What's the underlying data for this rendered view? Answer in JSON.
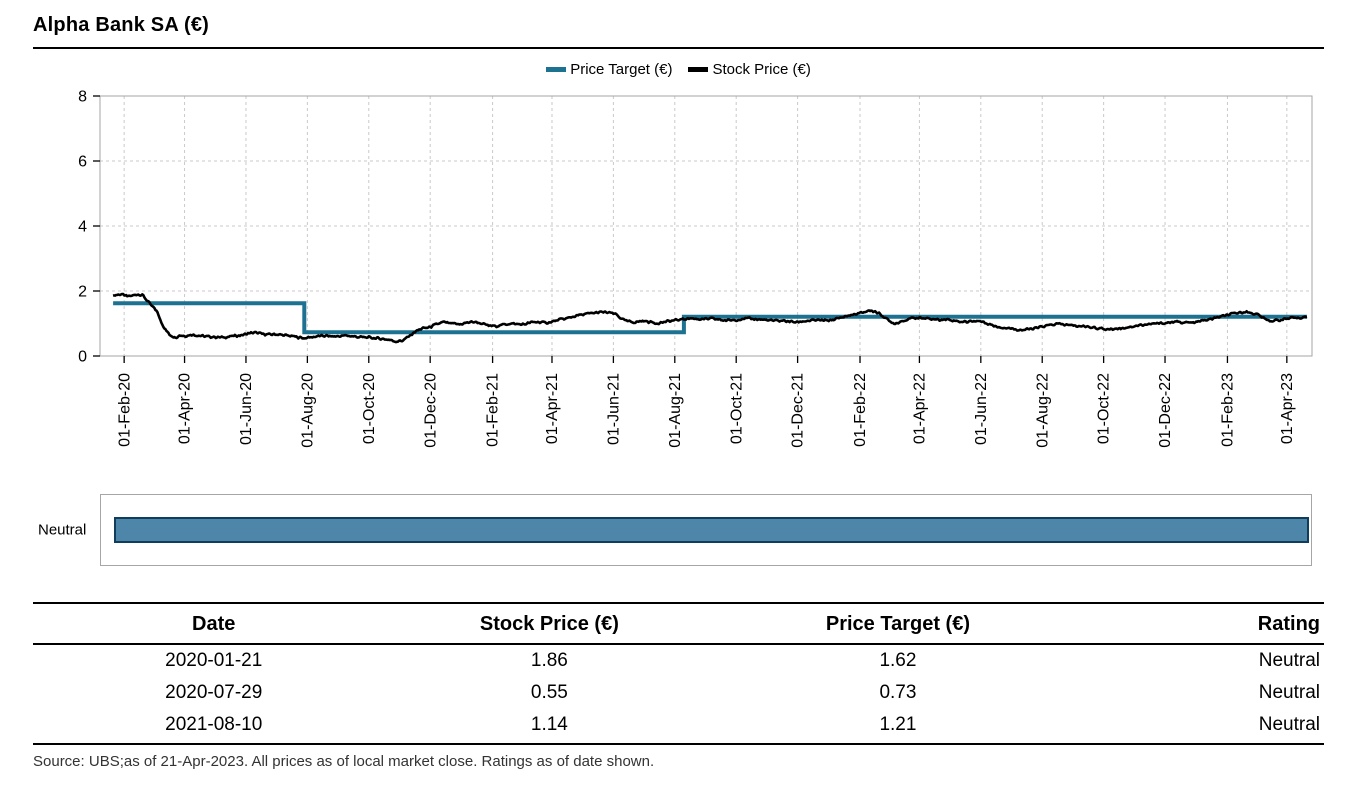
{
  "page": {
    "title": "Alpha Bank SA (€)",
    "source_note": "Source: UBS;as of 21-Apr-2023. All prices as of local market close. Ratings as of date shown."
  },
  "legend": {
    "items": [
      {
        "label": "Price Target (€)",
        "color": "#1d7291"
      },
      {
        "label": "Stock Price (€)",
        "color": "#000000"
      }
    ]
  },
  "rating_band": {
    "label": "Neutral",
    "fill": "#4d86a8",
    "border": "#113d5d",
    "start": "2020-01-21",
    "end": "2023-04-26"
  },
  "table": {
    "headers": [
      "Date",
      "Stock Price (€)",
      "Price Target (€)",
      "Rating"
    ],
    "rows": [
      [
        "2020-01-21",
        "1.86",
        "1.62",
        "Neutral"
      ],
      [
        "2020-07-29",
        "0.55",
        "0.73",
        "Neutral"
      ],
      [
        "2021-08-10",
        "1.14",
        "1.21",
        "Neutral"
      ]
    ]
  },
  "chart_data": {
    "type": "line",
    "title": "Alpha Bank SA (€)",
    "xlabel": "",
    "ylabel": "",
    "ylim": [
      0,
      8
    ],
    "y_ticks": [
      0,
      2,
      4,
      6,
      8
    ],
    "x_domain": [
      "2020-01-08",
      "2023-04-26"
    ],
    "grid": "dashed",
    "legend_position": "top-center",
    "x_ticks": [
      {
        "date": "2020-02-01",
        "label": "01-Feb-20"
      },
      {
        "date": "2020-04-01",
        "label": "01-Apr-20"
      },
      {
        "date": "2020-06-01",
        "label": "01-Jun-20"
      },
      {
        "date": "2020-08-01",
        "label": "01-Aug-20"
      },
      {
        "date": "2020-10-01",
        "label": "01-Oct-20"
      },
      {
        "date": "2020-12-01",
        "label": "01-Dec-20"
      },
      {
        "date": "2021-02-01",
        "label": "01-Feb-21"
      },
      {
        "date": "2021-04-01",
        "label": "01-Apr-21"
      },
      {
        "date": "2021-06-01",
        "label": "01-Jun-21"
      },
      {
        "date": "2021-08-01",
        "label": "01-Aug-21"
      },
      {
        "date": "2021-10-01",
        "label": "01-Oct-21"
      },
      {
        "date": "2021-12-01",
        "label": "01-Dec-21"
      },
      {
        "date": "2022-02-01",
        "label": "01-Feb-22"
      },
      {
        "date": "2022-04-01",
        "label": "01-Apr-22"
      },
      {
        "date": "2022-06-01",
        "label": "01-Jun-22"
      },
      {
        "date": "2022-08-01",
        "label": "01-Aug-22"
      },
      {
        "date": "2022-10-01",
        "label": "01-Oct-22"
      },
      {
        "date": "2022-12-01",
        "label": "01-Dec-22"
      },
      {
        "date": "2023-02-01",
        "label": "01-Feb-23"
      },
      {
        "date": "2023-04-01",
        "label": "01-Apr-23"
      }
    ],
    "series": [
      {
        "name": "Price Target (€)",
        "style": "step",
        "color": "#1d7291",
        "width": 4,
        "end": "2023-04-21",
        "points": [
          [
            "2020-01-21",
            1.62
          ],
          [
            "2020-07-29",
            0.73
          ],
          [
            "2021-08-10",
            1.21
          ]
        ]
      },
      {
        "name": "Stock Price (€)",
        "style": "line",
        "color": "#000000",
        "width": 2.6,
        "noise_amplitude": 0.04,
        "points": [
          [
            "2020-01-21",
            1.86
          ],
          [
            "2020-01-24",
            1.88
          ],
          [
            "2020-01-29",
            1.9
          ],
          [
            "2020-02-04",
            1.83
          ],
          [
            "2020-02-10",
            1.86
          ],
          [
            "2020-02-14",
            1.9
          ],
          [
            "2020-02-19",
            1.88
          ],
          [
            "2020-02-24",
            1.7
          ],
          [
            "2020-02-28",
            1.55
          ],
          [
            "2020-03-04",
            1.4
          ],
          [
            "2020-03-09",
            1.05
          ],
          [
            "2020-03-12",
            0.85
          ],
          [
            "2020-03-17",
            0.66
          ],
          [
            "2020-03-23",
            0.57
          ],
          [
            "2020-03-27",
            0.64
          ],
          [
            "2020-04-02",
            0.62
          ],
          [
            "2020-04-08",
            0.66
          ],
          [
            "2020-04-15",
            0.63
          ],
          [
            "2020-04-22",
            0.6
          ],
          [
            "2020-04-29",
            0.59
          ],
          [
            "2020-05-07",
            0.57
          ],
          [
            "2020-05-14",
            0.59
          ],
          [
            "2020-05-21",
            0.62
          ],
          [
            "2020-05-28",
            0.64
          ],
          [
            "2020-06-04",
            0.7
          ],
          [
            "2020-06-10",
            0.72
          ],
          [
            "2020-06-17",
            0.68
          ],
          [
            "2020-06-24",
            0.66
          ],
          [
            "2020-07-01",
            0.67
          ],
          [
            "2020-07-08",
            0.64
          ],
          [
            "2020-07-15",
            0.62
          ],
          [
            "2020-07-22",
            0.58
          ],
          [
            "2020-07-29",
            0.55
          ],
          [
            "2020-08-05",
            0.58
          ],
          [
            "2020-08-12",
            0.61
          ],
          [
            "2020-08-19",
            0.62
          ],
          [
            "2020-08-26",
            0.6
          ],
          [
            "2020-09-02",
            0.61
          ],
          [
            "2020-09-09",
            0.63
          ],
          [
            "2020-09-16",
            0.6
          ],
          [
            "2020-09-23",
            0.58
          ],
          [
            "2020-09-30",
            0.57
          ],
          [
            "2020-10-07",
            0.55
          ],
          [
            "2020-10-14",
            0.53
          ],
          [
            "2020-10-21",
            0.5
          ],
          [
            "2020-10-28",
            0.45
          ],
          [
            "2020-11-03",
            0.47
          ],
          [
            "2020-11-09",
            0.58
          ],
          [
            "2020-11-16",
            0.75
          ],
          [
            "2020-11-23",
            0.85
          ],
          [
            "2020-11-30",
            0.88
          ],
          [
            "2020-12-07",
            0.97
          ],
          [
            "2020-12-14",
            1.04
          ],
          [
            "2020-12-21",
            1.0
          ],
          [
            "2020-12-30",
            0.97
          ],
          [
            "2021-01-07",
            1.03
          ],
          [
            "2021-01-14",
            1.05
          ],
          [
            "2021-01-21",
            1.0
          ],
          [
            "2021-01-28",
            0.93
          ],
          [
            "2021-02-04",
            0.92
          ],
          [
            "2021-02-11",
            0.96
          ],
          [
            "2021-02-18",
            1.0
          ],
          [
            "2021-02-25",
            0.98
          ],
          [
            "2021-03-04",
            0.97
          ],
          [
            "2021-03-11",
            1.03
          ],
          [
            "2021-03-18",
            1.05
          ],
          [
            "2021-03-25",
            1.02
          ],
          [
            "2021-04-01",
            1.05
          ],
          [
            "2021-04-09",
            1.12
          ],
          [
            "2021-04-16",
            1.16
          ],
          [
            "2021-04-23",
            1.22
          ],
          [
            "2021-04-30",
            1.27
          ],
          [
            "2021-05-07",
            1.3
          ],
          [
            "2021-05-14",
            1.33
          ],
          [
            "2021-05-21",
            1.35
          ],
          [
            "2021-05-28",
            1.33
          ],
          [
            "2021-06-04",
            1.28
          ],
          [
            "2021-06-10",
            1.12
          ],
          [
            "2021-06-16",
            1.06
          ],
          [
            "2021-06-23",
            1.04
          ],
          [
            "2021-06-30",
            1.08
          ],
          [
            "2021-07-07",
            1.05
          ],
          [
            "2021-07-14",
            1.01
          ],
          [
            "2021-07-21",
            1.04
          ],
          [
            "2021-07-28",
            1.08
          ],
          [
            "2021-08-04",
            1.11
          ],
          [
            "2021-08-10",
            1.14
          ],
          [
            "2021-08-17",
            1.16
          ],
          [
            "2021-08-24",
            1.14
          ],
          [
            "2021-08-31",
            1.13
          ],
          [
            "2021-09-07",
            1.15
          ],
          [
            "2021-09-14",
            1.12
          ],
          [
            "2021-09-21",
            1.09
          ],
          [
            "2021-09-28",
            1.11
          ],
          [
            "2021-10-05",
            1.13
          ],
          [
            "2021-10-12",
            1.15
          ],
          [
            "2021-10-19",
            1.14
          ],
          [
            "2021-10-26",
            1.12
          ],
          [
            "2021-11-02",
            1.1
          ],
          [
            "2021-11-09",
            1.08
          ],
          [
            "2021-11-16",
            1.09
          ],
          [
            "2021-11-23",
            1.06
          ],
          [
            "2021-11-30",
            1.04
          ],
          [
            "2021-12-07",
            1.07
          ],
          [
            "2021-12-14",
            1.09
          ],
          [
            "2021-12-21",
            1.1
          ],
          [
            "2021-12-30",
            1.09
          ],
          [
            "2022-01-06",
            1.12
          ],
          [
            "2022-01-13",
            1.18
          ],
          [
            "2022-01-20",
            1.24
          ],
          [
            "2022-01-27",
            1.28
          ],
          [
            "2022-02-03",
            1.33
          ],
          [
            "2022-02-10",
            1.4
          ],
          [
            "2022-02-16",
            1.37
          ],
          [
            "2022-02-23",
            1.25
          ],
          [
            "2022-03-02",
            1.07
          ],
          [
            "2022-03-08",
            1.0
          ],
          [
            "2022-03-15",
            1.08
          ],
          [
            "2022-03-22",
            1.14
          ],
          [
            "2022-03-29",
            1.18
          ],
          [
            "2022-04-05",
            1.16
          ],
          [
            "2022-04-12",
            1.14
          ],
          [
            "2022-04-20",
            1.12
          ],
          [
            "2022-04-27",
            1.13
          ],
          [
            "2022-05-04",
            1.1
          ],
          [
            "2022-05-11",
            1.06
          ],
          [
            "2022-05-18",
            1.05
          ],
          [
            "2022-05-25",
            1.08
          ],
          [
            "2022-06-01",
            1.07
          ],
          [
            "2022-06-08",
            1.0
          ],
          [
            "2022-06-15",
            0.92
          ],
          [
            "2022-06-22",
            0.88
          ],
          [
            "2022-06-29",
            0.86
          ],
          [
            "2022-07-06",
            0.82
          ],
          [
            "2022-07-13",
            0.8
          ],
          [
            "2022-07-20",
            0.83
          ],
          [
            "2022-07-27",
            0.86
          ],
          [
            "2022-08-03",
            0.92
          ],
          [
            "2022-08-10",
            0.96
          ],
          [
            "2022-08-17",
            0.99
          ],
          [
            "2022-08-24",
            0.96
          ],
          [
            "2022-08-31",
            0.94
          ],
          [
            "2022-09-07",
            0.92
          ],
          [
            "2022-09-14",
            0.91
          ],
          [
            "2022-09-21",
            0.88
          ],
          [
            "2022-09-28",
            0.84
          ],
          [
            "2022-10-05",
            0.82
          ],
          [
            "2022-10-12",
            0.84
          ],
          [
            "2022-10-19",
            0.86
          ],
          [
            "2022-10-26",
            0.89
          ],
          [
            "2022-11-02",
            0.93
          ],
          [
            "2022-11-09",
            0.96
          ],
          [
            "2022-11-16",
            0.98
          ],
          [
            "2022-11-23",
            1.0
          ],
          [
            "2022-11-30",
            1.01
          ],
          [
            "2022-12-07",
            1.04
          ],
          [
            "2022-12-14",
            1.05
          ],
          [
            "2022-12-21",
            1.03
          ],
          [
            "2022-12-30",
            1.02
          ],
          [
            "2023-01-06",
            1.08
          ],
          [
            "2023-01-13",
            1.12
          ],
          [
            "2023-01-20",
            1.17
          ],
          [
            "2023-01-27",
            1.22
          ],
          [
            "2023-02-03",
            1.27
          ],
          [
            "2023-02-10",
            1.32
          ],
          [
            "2023-02-17",
            1.36
          ],
          [
            "2023-02-24",
            1.33
          ],
          [
            "2023-03-03",
            1.28
          ],
          [
            "2023-03-10",
            1.14
          ],
          [
            "2023-03-16",
            1.08
          ],
          [
            "2023-03-23",
            1.1
          ],
          [
            "2023-03-30",
            1.14
          ],
          [
            "2023-04-06",
            1.16
          ],
          [
            "2023-04-13",
            1.18
          ],
          [
            "2023-04-21",
            1.2
          ]
        ]
      }
    ]
  }
}
